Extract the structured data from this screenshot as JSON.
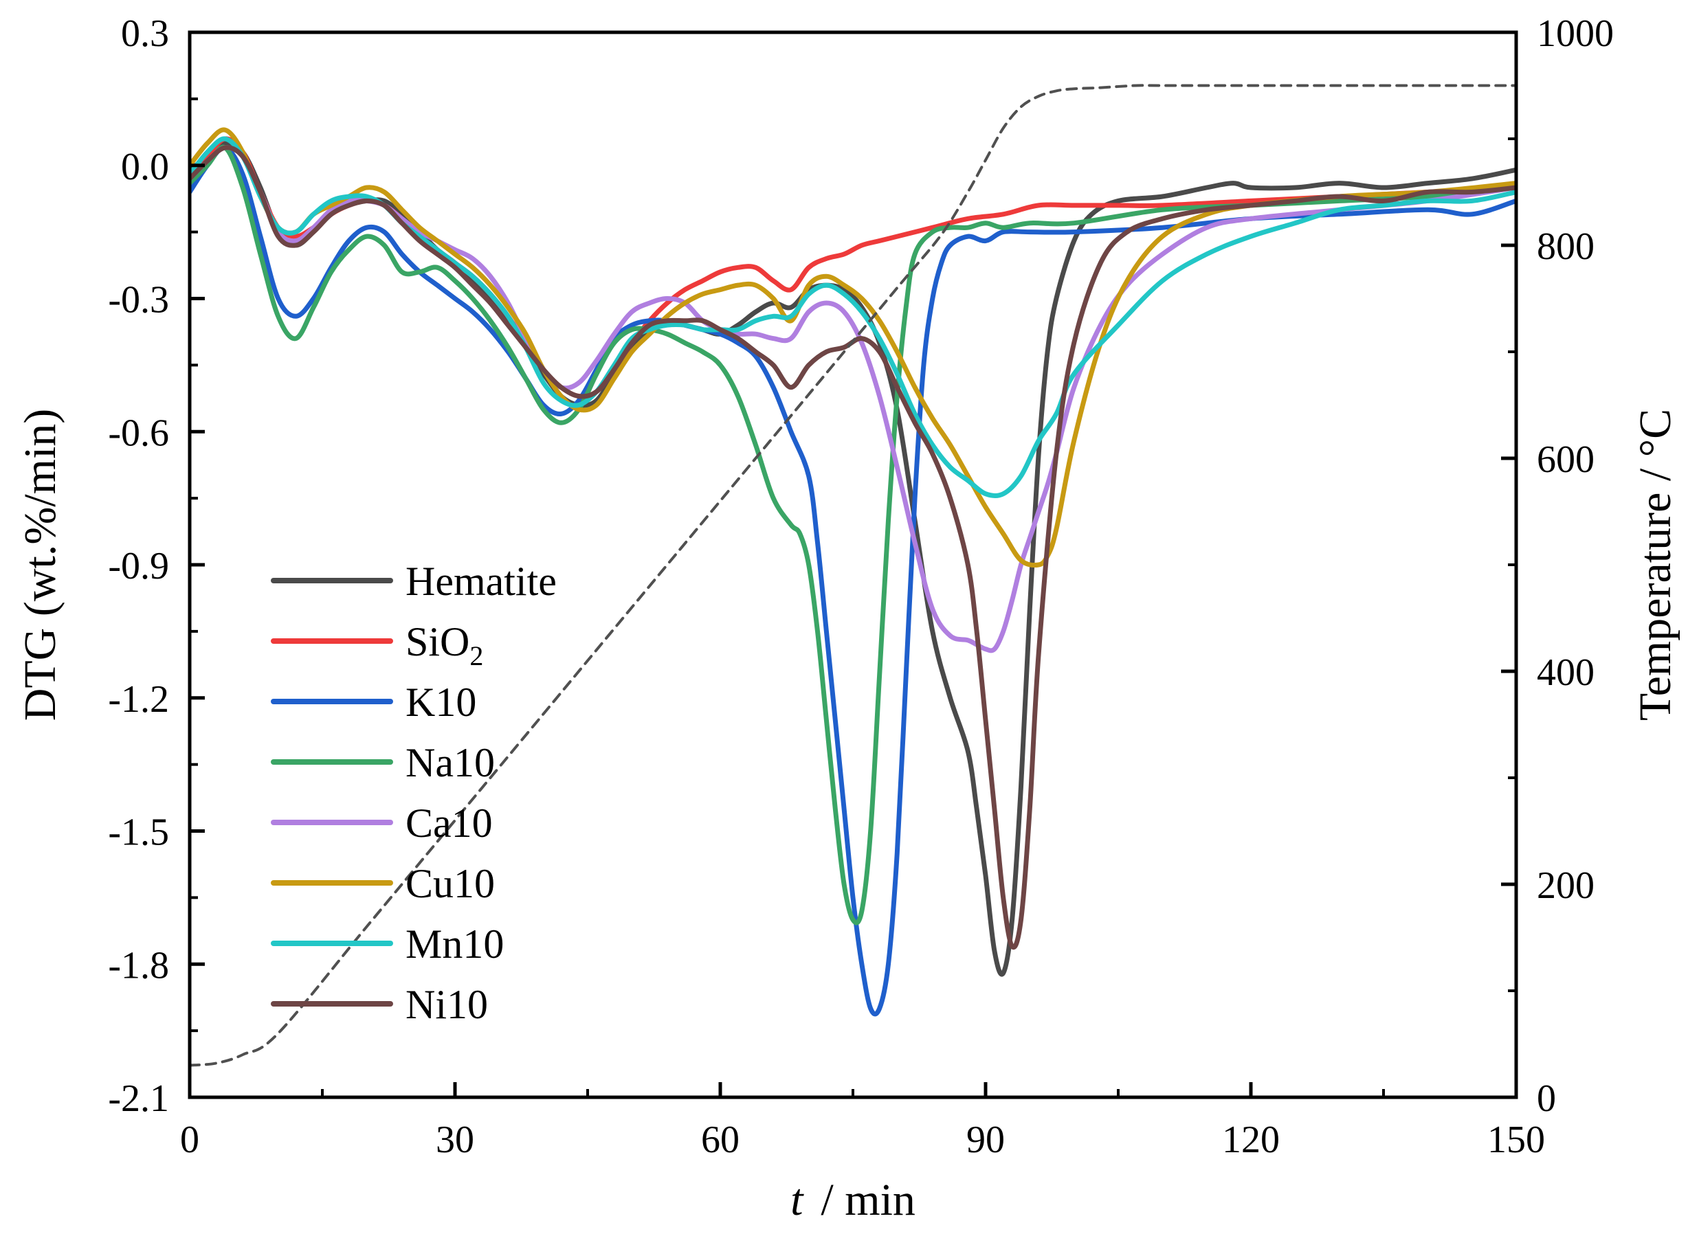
{
  "chart_data": {
    "type": "line",
    "xlabel_italic": "t",
    "xlabel_rest": "/ min",
    "ylabel": "DTG (wt.%/min)",
    "ylabel_right": "Temperature / °C",
    "xlim": [
      0,
      150
    ],
    "ylim": [
      -2.1,
      0.3
    ],
    "ylim_right": [
      0,
      1000
    ],
    "xticks": [
      "0",
      "30",
      "60",
      "90",
      "120",
      "150"
    ],
    "yticks": [
      "0.3",
      "0.0",
      "-0.3",
      "-0.6",
      "-0.9",
      "-1.2",
      "-1.5",
      "-1.8",
      "-2.1"
    ],
    "yticks_right": [
      "1000",
      "800",
      "600",
      "400",
      "200",
      "0"
    ],
    "grid": false,
    "legend_position": "lower-left",
    "series": [
      {
        "name": "Hematite",
        "label_main": "Hematite",
        "color": "#4a4a4a",
        "x": [
          0,
          2,
          4,
          6,
          8,
          10,
          12,
          14,
          16,
          18,
          20,
          22,
          24,
          26,
          28,
          30,
          32,
          34,
          36,
          38,
          40,
          42,
          44,
          46,
          48,
          50,
          52,
          54,
          56,
          58,
          60,
          62,
          64,
          66,
          68,
          70,
          72,
          74,
          76,
          78,
          80,
          82,
          84,
          86,
          88,
          89,
          90,
          91,
          92,
          93,
          94,
          95,
          96,
          97,
          98,
          100,
          102,
          105,
          110,
          115,
          118,
          120,
          125,
          130,
          135,
          140,
          145,
          150
        ],
        "y": [
          -0.01,
          0.02,
          0.05,
          0.03,
          -0.05,
          -0.15,
          -0.18,
          -0.15,
          -0.11,
          -0.09,
          -0.08,
          -0.08,
          -0.11,
          -0.15,
          -0.19,
          -0.22,
          -0.26,
          -0.3,
          -0.35,
          -0.41,
          -0.47,
          -0.52,
          -0.54,
          -0.53,
          -0.47,
          -0.41,
          -0.37,
          -0.35,
          -0.36,
          -0.37,
          -0.38,
          -0.36,
          -0.33,
          -0.31,
          -0.32,
          -0.28,
          -0.27,
          -0.28,
          -0.32,
          -0.4,
          -0.55,
          -0.8,
          -1.05,
          -1.2,
          -1.32,
          -1.45,
          -1.6,
          -1.77,
          -1.82,
          -1.7,
          -1.4,
          -1.0,
          -0.65,
          -0.42,
          -0.3,
          -0.17,
          -0.11,
          -0.08,
          -0.07,
          -0.05,
          -0.04,
          -0.05,
          -0.05,
          -0.04,
          -0.05,
          -0.04,
          -0.03,
          -0.01
        ]
      },
      {
        "name": "SiO2",
        "label_main": "SiO",
        "label_sub": "2",
        "color": "#ee3a3a",
        "x": [
          0,
          2,
          4,
          6,
          8,
          10,
          12,
          14,
          16,
          18,
          20,
          22,
          24,
          26,
          28,
          30,
          32,
          34,
          36,
          38,
          40,
          42,
          44,
          46,
          48,
          50,
          52,
          54,
          56,
          58,
          60,
          62,
          64,
          66,
          68,
          70,
          72,
          74,
          76,
          78,
          80,
          84,
          88,
          92,
          96,
          100,
          105,
          110,
          120,
          130,
          140,
          150
        ],
        "y": [
          -0.02,
          0.02,
          0.06,
          0.03,
          -0.06,
          -0.14,
          -0.16,
          -0.14,
          -0.11,
          -0.09,
          -0.08,
          -0.09,
          -0.12,
          -0.16,
          -0.19,
          -0.22,
          -0.25,
          -0.29,
          -0.34,
          -0.4,
          -0.46,
          -0.5,
          -0.52,
          -0.51,
          -0.46,
          -0.4,
          -0.35,
          -0.31,
          -0.28,
          -0.26,
          -0.24,
          -0.23,
          -0.23,
          -0.26,
          -0.28,
          -0.23,
          -0.21,
          -0.2,
          -0.18,
          -0.17,
          -0.16,
          -0.14,
          -0.12,
          -0.11,
          -0.09,
          -0.09,
          -0.09,
          -0.09,
          -0.08,
          -0.07,
          -0.06,
          -0.05
        ]
      },
      {
        "name": "K10",
        "label_main": "K10",
        "color": "#1f5fcc",
        "x": [
          0,
          2,
          4,
          6,
          8,
          10,
          12,
          14,
          16,
          18,
          20,
          22,
          24,
          26,
          28,
          30,
          32,
          34,
          36,
          38,
          40,
          42,
          44,
          46,
          48,
          50,
          52,
          54,
          56,
          58,
          60,
          62,
          64,
          66,
          68,
          70,
          71,
          72,
          73,
          74,
          75,
          76,
          77,
          78,
          79,
          80,
          81,
          82,
          83,
          84,
          85,
          86,
          88,
          90,
          92,
          95,
          100,
          110,
          120,
          130,
          140,
          145,
          150
        ],
        "y": [
          -0.06,
          0.0,
          0.04,
          -0.02,
          -0.16,
          -0.3,
          -0.34,
          -0.3,
          -0.23,
          -0.17,
          -0.14,
          -0.15,
          -0.2,
          -0.24,
          -0.27,
          -0.3,
          -0.33,
          -0.37,
          -0.42,
          -0.48,
          -0.54,
          -0.56,
          -0.53,
          -0.46,
          -0.39,
          -0.36,
          -0.35,
          -0.35,
          -0.36,
          -0.37,
          -0.38,
          -0.4,
          -0.43,
          -0.5,
          -0.6,
          -0.7,
          -0.85,
          -1.05,
          -1.25,
          -1.45,
          -1.65,
          -1.8,
          -1.9,
          -1.9,
          -1.8,
          -1.55,
          -1.15,
          -0.75,
          -0.45,
          -0.3,
          -0.22,
          -0.18,
          -0.16,
          -0.17,
          -0.15,
          -0.15,
          -0.15,
          -0.14,
          -0.12,
          -0.11,
          -0.1,
          -0.11,
          -0.08
        ]
      },
      {
        "name": "Na10",
        "label_main": "Na10",
        "color": "#3aa565",
        "x": [
          0,
          2,
          4,
          6,
          8,
          10,
          12,
          14,
          16,
          18,
          20,
          22,
          24,
          26,
          28,
          30,
          32,
          34,
          36,
          38,
          40,
          42,
          44,
          46,
          48,
          50,
          52,
          54,
          56,
          58,
          60,
          62,
          64,
          66,
          68,
          69,
          70,
          71,
          72,
          73,
          74,
          75,
          76,
          77,
          78,
          79,
          80,
          81,
          82,
          84,
          86,
          88,
          90,
          92,
          95,
          100,
          110,
          120,
          130,
          140,
          150
        ],
        "y": [
          -0.04,
          0.0,
          0.04,
          -0.05,
          -0.2,
          -0.34,
          -0.39,
          -0.32,
          -0.24,
          -0.19,
          -0.16,
          -0.18,
          -0.24,
          -0.24,
          -0.23,
          -0.26,
          -0.3,
          -0.35,
          -0.41,
          -0.48,
          -0.55,
          -0.58,
          -0.55,
          -0.47,
          -0.4,
          -0.37,
          -0.37,
          -0.38,
          -0.4,
          -0.42,
          -0.45,
          -0.52,
          -0.63,
          -0.75,
          -0.81,
          -0.83,
          -0.9,
          -1.05,
          -1.25,
          -1.45,
          -1.62,
          -1.7,
          -1.68,
          -1.5,
          -1.15,
          -0.8,
          -0.52,
          -0.32,
          -0.2,
          -0.15,
          -0.14,
          -0.14,
          -0.13,
          -0.14,
          -0.13,
          -0.13,
          -0.1,
          -0.09,
          -0.08,
          -0.07,
          -0.05
        ]
      },
      {
        "name": "Ca10",
        "label_main": "Ca10",
        "color": "#b07fe0",
        "x": [
          0,
          2,
          4,
          6,
          8,
          10,
          12,
          14,
          16,
          18,
          20,
          22,
          24,
          26,
          28,
          30,
          32,
          34,
          36,
          38,
          40,
          42,
          44,
          46,
          48,
          50,
          52,
          54,
          56,
          58,
          60,
          62,
          64,
          66,
          68,
          70,
          72,
          74,
          76,
          78,
          80,
          82,
          84,
          86,
          88,
          89,
          90,
          91,
          92,
          93,
          94,
          95,
          96,
          97,
          98,
          100,
          103,
          106,
          110,
          115,
          120,
          130,
          140,
          150
        ],
        "y": [
          -0.03,
          0.01,
          0.04,
          0.02,
          -0.06,
          -0.15,
          -0.17,
          -0.14,
          -0.1,
          -0.08,
          -0.08,
          -0.09,
          -0.12,
          -0.15,
          -0.17,
          -0.19,
          -0.21,
          -0.25,
          -0.31,
          -0.39,
          -0.46,
          -0.5,
          -0.49,
          -0.44,
          -0.38,
          -0.33,
          -0.31,
          -0.3,
          -0.31,
          -0.35,
          -0.37,
          -0.38,
          -0.38,
          -0.39,
          -0.39,
          -0.33,
          -0.31,
          -0.33,
          -0.4,
          -0.52,
          -0.68,
          -0.85,
          -1.0,
          -1.06,
          -1.07,
          -1.08,
          -1.09,
          -1.09,
          -1.05,
          -0.98,
          -0.9,
          -0.84,
          -0.78,
          -0.72,
          -0.65,
          -0.5,
          -0.36,
          -0.27,
          -0.2,
          -0.14,
          -0.12,
          -0.1,
          -0.08,
          -0.05
        ]
      },
      {
        "name": "Cu10",
        "label_main": "Cu10",
        "color": "#c89a12",
        "x": [
          0,
          2,
          4,
          6,
          8,
          10,
          12,
          14,
          16,
          18,
          20,
          22,
          24,
          26,
          28,
          30,
          32,
          34,
          36,
          38,
          40,
          42,
          44,
          46,
          48,
          50,
          52,
          54,
          56,
          58,
          60,
          62,
          64,
          66,
          68,
          70,
          72,
          74,
          76,
          78,
          80,
          82,
          84,
          86,
          88,
          90,
          92,
          94,
          96,
          97,
          98,
          100,
          103,
          106,
          110,
          115,
          120,
          130,
          140,
          150
        ],
        "y": [
          0.0,
          0.05,
          0.08,
          0.03,
          -0.07,
          -0.14,
          -0.15,
          -0.11,
          -0.09,
          -0.07,
          -0.05,
          -0.06,
          -0.1,
          -0.14,
          -0.17,
          -0.2,
          -0.23,
          -0.27,
          -0.32,
          -0.38,
          -0.46,
          -0.52,
          -0.55,
          -0.54,
          -0.48,
          -0.42,
          -0.38,
          -0.34,
          -0.31,
          -0.29,
          -0.28,
          -0.27,
          -0.27,
          -0.3,
          -0.35,
          -0.27,
          -0.25,
          -0.27,
          -0.3,
          -0.35,
          -0.42,
          -0.5,
          -0.57,
          -0.63,
          -0.7,
          -0.77,
          -0.83,
          -0.89,
          -0.9,
          -0.88,
          -0.82,
          -0.62,
          -0.4,
          -0.26,
          -0.16,
          -0.11,
          -0.09,
          -0.07,
          -0.06,
          -0.04
        ]
      },
      {
        "name": "Mn10",
        "label_main": "Mn10",
        "color": "#22c6c6",
        "x": [
          0,
          2,
          4,
          6,
          8,
          10,
          12,
          14,
          16,
          18,
          20,
          22,
          24,
          26,
          28,
          30,
          32,
          34,
          36,
          38,
          40,
          42,
          44,
          46,
          48,
          50,
          52,
          54,
          56,
          58,
          60,
          62,
          64,
          66,
          68,
          70,
          72,
          74,
          76,
          78,
          80,
          82,
          84,
          86,
          88,
          90,
          92,
          94,
          96,
          98,
          100,
          105,
          110,
          115,
          120,
          125,
          130,
          135,
          140,
          145,
          150
        ],
        "y": [
          -0.02,
          0.03,
          0.06,
          0.02,
          -0.07,
          -0.14,
          -0.15,
          -0.11,
          -0.08,
          -0.07,
          -0.07,
          -0.09,
          -0.13,
          -0.16,
          -0.19,
          -0.22,
          -0.25,
          -0.29,
          -0.34,
          -0.41,
          -0.49,
          -0.53,
          -0.54,
          -0.51,
          -0.45,
          -0.39,
          -0.37,
          -0.36,
          -0.36,
          -0.37,
          -0.37,
          -0.37,
          -0.35,
          -0.34,
          -0.34,
          -0.29,
          -0.27,
          -0.29,
          -0.33,
          -0.39,
          -0.47,
          -0.56,
          -0.63,
          -0.68,
          -0.71,
          -0.74,
          -0.74,
          -0.7,
          -0.62,
          -0.56,
          -0.47,
          -0.36,
          -0.26,
          -0.2,
          -0.16,
          -0.13,
          -0.1,
          -0.09,
          -0.08,
          -0.08,
          -0.06
        ]
      },
      {
        "name": "Ni10",
        "label_main": "Ni10",
        "color": "#6e4545",
        "x": [
          0,
          2,
          4,
          6,
          8,
          10,
          12,
          14,
          16,
          18,
          20,
          22,
          24,
          26,
          28,
          30,
          32,
          34,
          36,
          38,
          40,
          42,
          44,
          46,
          48,
          50,
          52,
          54,
          56,
          58,
          60,
          62,
          64,
          66,
          68,
          70,
          72,
          74,
          76,
          78,
          80,
          82,
          84,
          86,
          88,
          89,
          90,
          91,
          92,
          93,
          94,
          95,
          96,
          98,
          100,
          103,
          106,
          110,
          115,
          120,
          125,
          130,
          135,
          140,
          145,
          150
        ],
        "y": [
          -0.03,
          0.01,
          0.04,
          0.02,
          -0.06,
          -0.16,
          -0.18,
          -0.15,
          -0.11,
          -0.09,
          -0.08,
          -0.09,
          -0.13,
          -0.17,
          -0.2,
          -0.23,
          -0.27,
          -0.31,
          -0.36,
          -0.41,
          -0.46,
          -0.5,
          -0.52,
          -0.51,
          -0.46,
          -0.4,
          -0.36,
          -0.35,
          -0.35,
          -0.35,
          -0.37,
          -0.39,
          -0.42,
          -0.45,
          -0.5,
          -0.45,
          -0.42,
          -0.41,
          -0.39,
          -0.42,
          -0.5,
          -0.58,
          -0.65,
          -0.75,
          -0.9,
          -1.05,
          -1.25,
          -1.45,
          -1.65,
          -1.76,
          -1.7,
          -1.45,
          -1.1,
          -0.65,
          -0.4,
          -0.22,
          -0.15,
          -0.12,
          -0.1,
          -0.09,
          -0.08,
          -0.07,
          -0.08,
          -0.06,
          -0.06,
          -0.05
        ]
      },
      {
        "name": "Temperature",
        "axis": "right",
        "dashed": true,
        "color": "#505050",
        "in_legend": false,
        "x": [
          0,
          3,
          6,
          10,
          20,
          30,
          40,
          50,
          60,
          70,
          80,
          85,
          88,
          90,
          92,
          94,
          96,
          98,
          100,
          103,
          107,
          110,
          115,
          120,
          130,
          140,
          150
        ],
        "y": [
          30,
          32,
          40,
          60,
          160,
          260,
          360,
          460,
          560,
          660,
          760,
          810,
          850,
          880,
          910,
          930,
          940,
          945,
          947,
          948,
          950,
          950,
          950,
          950,
          950,
          950,
          950
        ]
      }
    ]
  }
}
